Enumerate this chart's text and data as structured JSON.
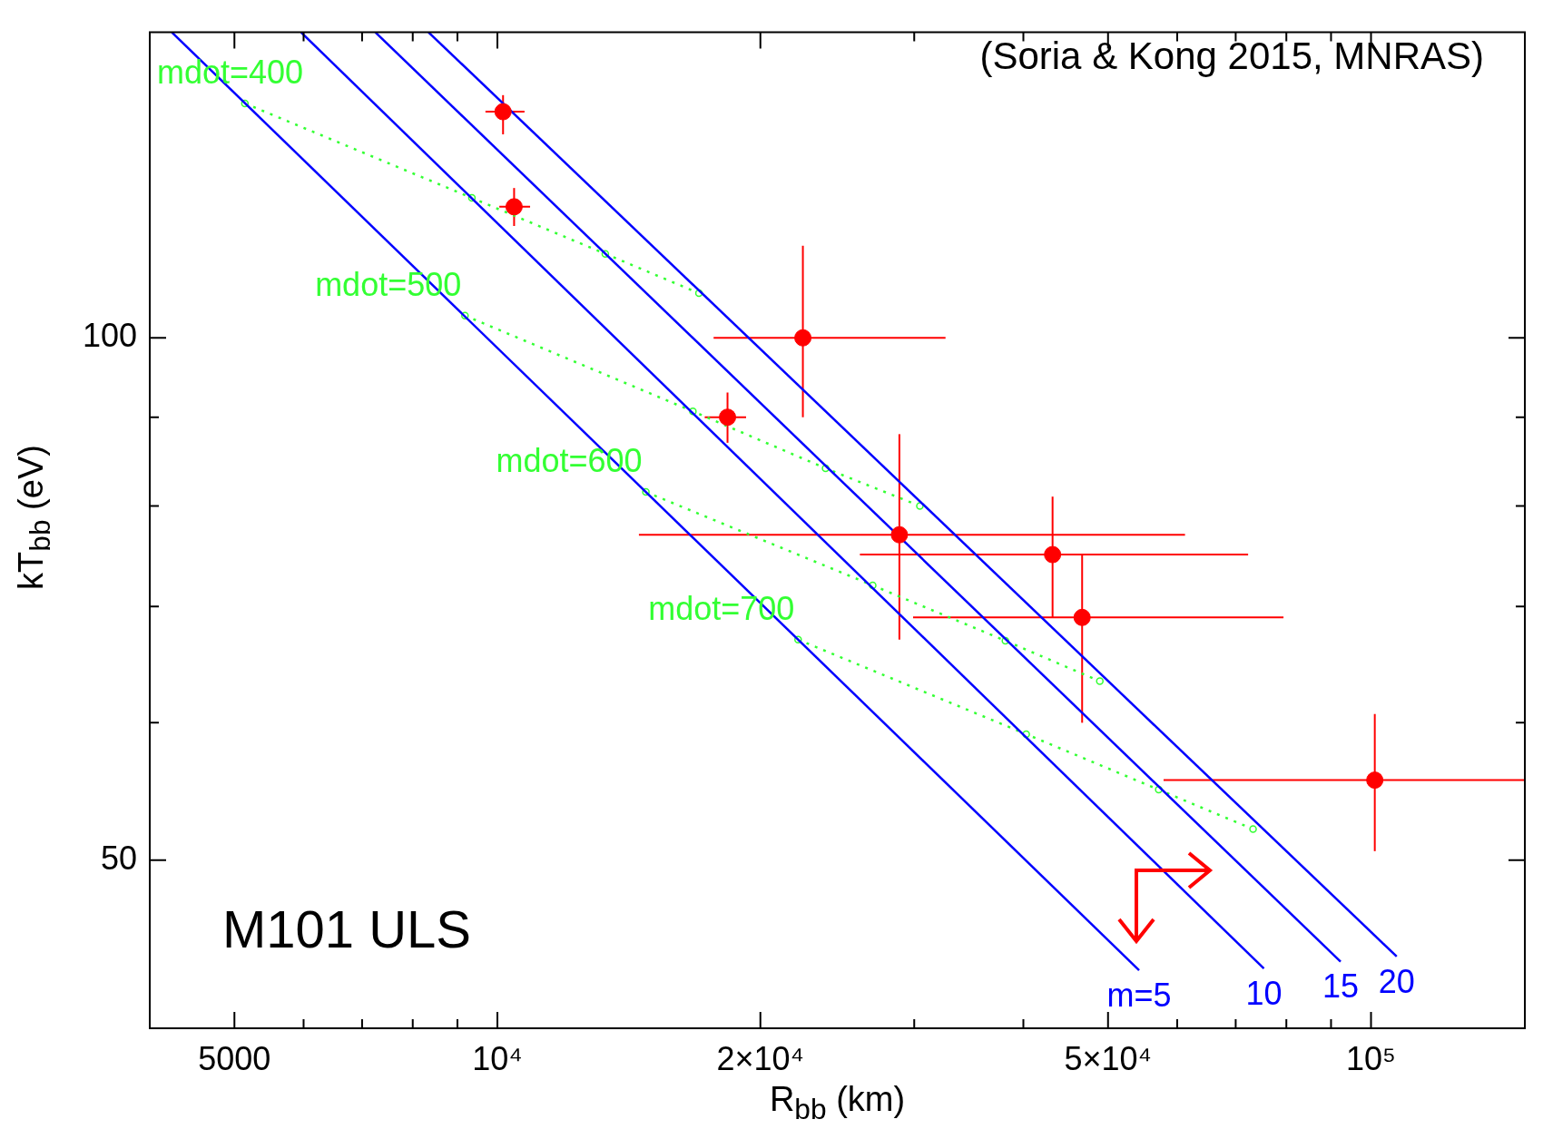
{
  "chart_data": {
    "type": "scatter",
    "xlabel": "R$_{bb}$ (km)",
    "ylabel": "kT$_{bb}$ (eV)",
    "annotations": [
      "(Soria & Kong 2015, MNRAS)",
      "M101 ULS"
    ],
    "log": "xy",
    "grid": false,
    "legend": false,
    "xlim": [
      4000,
      150000
    ],
    "ylim": [
      40,
      150
    ],
    "xticks": [
      {
        "value": 5000,
        "label": "5000"
      },
      {
        "value": 6000,
        "label": null
      },
      {
        "value": 7000,
        "label": null
      },
      {
        "value": 8000,
        "label": null
      },
      {
        "value": 9000,
        "label": null
      },
      {
        "value": 10000,
        "label": "10⁴"
      },
      {
        "value": 20000,
        "label": "2×10⁴"
      },
      {
        "value": 30000,
        "label": null
      },
      {
        "value": 40000,
        "label": null
      },
      {
        "value": 50000,
        "label": "5×10⁴"
      },
      {
        "value": 60000,
        "label": null
      },
      {
        "value": 70000,
        "label": null
      },
      {
        "value": 80000,
        "label": null
      },
      {
        "value": 90000,
        "label": null
      },
      {
        "value": 100000,
        "label": "10⁵"
      }
    ],
    "yticks": [
      {
        "value": 50,
        "label": "50"
      },
      {
        "value": 60,
        "label": null
      },
      {
        "value": 70,
        "label": null
      },
      {
        "value": 80,
        "label": null
      },
      {
        "value": 90,
        "label": null
      },
      {
        "value": 100,
        "label": "100"
      }
    ],
    "series": [
      {
        "type": "scatter",
        "color": "#ff0000",
        "marker": "circle",
        "x": [
          10150,
          10450,
          22370,
          18340,
          28850,
          43200,
          46700,
          101000
        ],
        "values": [
          135,
          119,
          100,
          90,
          77,
          75,
          69,
          55.6
        ],
        "errors": [
          [
            131,
            138
          ],
          [
            116,
            122
          ],
          [
            90,
            113
          ],
          [
            87,
            93
          ],
          [
            67,
            88
          ],
          [
            69,
            81
          ],
          [
            60,
            75
          ],
          [
            50.6,
            60.7
          ]
        ],
        "xerrors": [
          [
            9690,
            10740
          ],
          [
            10050,
            10900
          ],
          [
            17680,
            32580
          ],
          [
            17270,
            19260
          ],
          [
            14520,
            61250
          ],
          [
            26000,
            72330
          ],
          [
            29910,
            79400
          ],
          [
            57880,
            150000
          ]
        ]
      },
      {
        "type": "line",
        "name": "m=5",
        "color": "#0000ff",
        "marker": "none",
        "line_style": "solid",
        "x": [
          4240,
          54270
        ],
        "values": [
          150,
          43.2
        ]
      },
      {
        "type": "line",
        "name": "10",
        "color": "#0000ff",
        "marker": "none",
        "line_style": "solid",
        "x": [
          5960,
          75400
        ],
        "values": [
          150,
          43.3
        ]
      },
      {
        "type": "line",
        "name": "15",
        "color": "#0000ff",
        "marker": "none",
        "line_style": "solid",
        "x": [
          7250,
          92300
        ],
        "values": [
          150,
          43.7
        ]
      },
      {
        "type": "line",
        "name": "20",
        "color": "#0000ff",
        "marker": "none",
        "line_style": "solid",
        "x": [
          8340,
          107000
        ],
        "values": [
          150,
          44.0
        ]
      },
      {
        "type": "line",
        "name": "mdot=400",
        "color": "#33ff33",
        "marker": "circle",
        "line_style": "dotted",
        "x": [
          5140,
          9350,
          13290,
          17010
        ],
        "values": [
          136.5,
          120.4,
          111.8,
          106.1
        ]
      },
      {
        "type": "line",
        "name": "mdot=500",
        "color": "#33ff33",
        "marker": "circle",
        "line_style": "dotted",
        "x": [
          9180,
          16740,
          23750,
          30450
        ],
        "values": [
          103,
          90.7,
          84.1,
          80
        ]
      },
      {
        "type": "line",
        "name": "mdot=600",
        "color": "#33ff33",
        "marker": "circle",
        "line_style": "dotted",
        "x": [
          14790,
          26890,
          38150,
          48930
        ],
        "values": [
          81.5,
          72,
          66.9,
          63.4
        ]
      },
      {
        "type": "line",
        "name": "mdot=700",
        "color": "#33ff33",
        "marker": "circle",
        "line_style": "dotted",
        "x": [
          22090,
          40300,
          57150,
          73280
        ],
        "values": [
          67,
          59.1,
          54.9,
          52.1
        ]
      }
    ]
  }
}
